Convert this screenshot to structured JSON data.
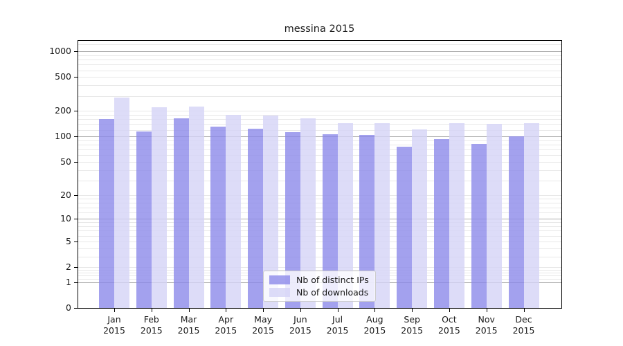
{
  "colors": {
    "bar_distinct_ips": "#a3a1ee",
    "bar_downloads": "#dddcf7",
    "grid_major": "#ababab",
    "grid_minor": "#e8e8e8",
    "axis_spine": "#000000",
    "background": "#ffffff"
  },
  "chart_data": {
    "type": "bar",
    "title": "messina 2015",
    "xlabel": "",
    "ylabel": "",
    "categories": [
      "Jan",
      "Feb",
      "Mar",
      "Apr",
      "May",
      "Jun",
      "Jul",
      "Aug",
      "Sep",
      "Oct",
      "Nov",
      "Dec"
    ],
    "year_label": "2015",
    "series": [
      {
        "name": "Nb of distinct IPs",
        "color": "#a3a1ee",
        "fill": "rgba(140,138,234,0.8)",
        "values": [
          160,
          115,
          165,
          131,
          124,
          113,
          106,
          104,
          76,
          94,
          82,
          101
        ]
      },
      {
        "name": "Nb of downloads",
        "color": "#dddcf7",
        "fill": "rgba(213,211,246,0.8)",
        "values": [
          290,
          220,
          225,
          180,
          176,
          164,
          144,
          144,
          122,
          143,
          140,
          144
        ]
      }
    ],
    "y_axis": {
      "scale": "symlog",
      "tick_values": [
        0,
        1,
        2,
        5,
        10,
        20,
        50,
        100,
        200,
        500,
        1000
      ],
      "tick_labels": [
        "0",
        "1",
        "2",
        "5",
        "10",
        "20",
        "50",
        "100",
        "200",
        "500",
        "1000"
      ],
      "ylim": [
        0,
        1300
      ],
      "minor_subs_per_decade": [
        1.2,
        1.4,
        1.6,
        1.8,
        2,
        3,
        4,
        5,
        6,
        7,
        8,
        9
      ]
    },
    "grid": true,
    "legend_position": "lower center"
  }
}
